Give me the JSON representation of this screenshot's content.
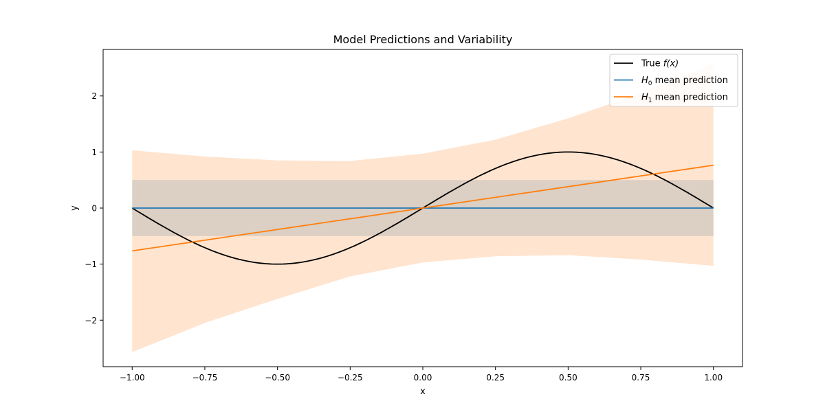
{
  "chart_data": {
    "type": "line",
    "title": "Model Predictions and Variability",
    "xlabel": "x",
    "ylabel": "y",
    "xlim": [
      -1.1,
      1.1
    ],
    "ylim": [
      -2.83,
      2.83
    ],
    "xticks": [
      -1.0,
      -0.75,
      -0.5,
      -0.25,
      0.0,
      0.25,
      0.5,
      0.75,
      1.0
    ],
    "xtick_labels": [
      "−1.00",
      "−0.75",
      "−0.50",
      "−0.25",
      "0.00",
      "0.25",
      "0.50",
      "0.75",
      "1.00"
    ],
    "yticks": [
      -2,
      -1,
      0,
      1,
      2
    ],
    "ytick_labels": [
      "−2",
      "−1",
      "0",
      "1",
      "2"
    ],
    "grid": false,
    "legend_position": "top-right",
    "series": [
      {
        "name": "True f(x)",
        "legend_prefix": "True ",
        "legend_math": "f(x)",
        "legend_suffix": "",
        "color": "#000000",
        "function": "sin(pi*x)"
      },
      {
        "name": "H0 mean prediction",
        "legend_prefix": "",
        "legend_math": "H",
        "legend_sub": "0",
        "legend_suffix": " mean prediction",
        "color": "#1f77b4",
        "x": [
          -1.0,
          1.0
        ],
        "y": [
          0.0,
          0.0
        ]
      },
      {
        "name": "H1 mean prediction",
        "legend_prefix": "",
        "legend_math": "H",
        "legend_sub": "1",
        "legend_suffix": " mean prediction",
        "color": "#ff7f0e",
        "x": [
          -1.0,
          1.0
        ],
        "y": [
          -0.765,
          0.765
        ]
      }
    ],
    "bands": [
      {
        "for_series": "H1 mean prediction",
        "color": "#ffe4cf",
        "x": [
          -1.0,
          -0.75,
          -0.5,
          -0.25,
          0.0,
          0.25,
          0.5,
          0.75,
          1.0
        ],
        "lower": [
          -2.57,
          -2.05,
          -1.62,
          -1.22,
          -0.97,
          -0.86,
          -0.84,
          -0.92,
          -1.03
        ],
        "upper": [
          1.03,
          0.92,
          0.85,
          0.84,
          0.97,
          1.22,
          1.6,
          2.05,
          2.57
        ]
      },
      {
        "for_series": "H0 mean prediction",
        "color": "#dccfc3",
        "x": [
          -1.0,
          1.0
        ],
        "lower": [
          -0.5,
          -0.5
        ],
        "upper": [
          0.5,
          0.5
        ]
      }
    ]
  }
}
